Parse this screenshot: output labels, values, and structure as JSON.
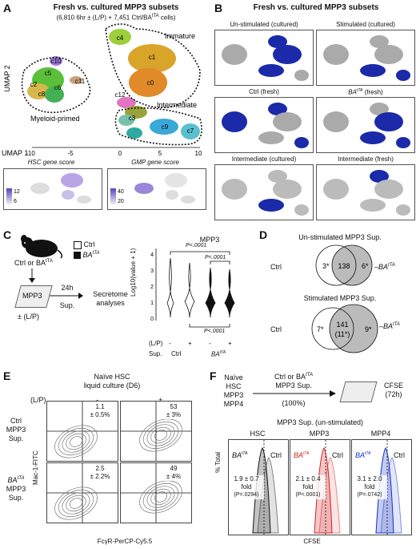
{
  "panelA": {
    "label": "A",
    "title": "Fresh vs. cultured MPP3 subsets",
    "subtitle": "(6,810 6hr ± (L/P) + 7,451 Ctrl/BA",
    "subtitle_sup": "tTA",
    "subtitle_end": " cells)",
    "y_axis": "UMAP 2",
    "x_axis": "UMAP 1",
    "x_ticks": [
      "-10",
      "-5",
      "0",
      "5",
      "10"
    ],
    "regions": {
      "immature": "Immature",
      "intermediate": "Intermediate",
      "myeloid": "Myeloid-primed"
    },
    "clusters": [
      "c0",
      "c1",
      "c2",
      "c3",
      "c4",
      "c5",
      "c6",
      "c7",
      "c8",
      "c9",
      "c10",
      "c11",
      "c12"
    ],
    "hsc_score": {
      "title": "HSC gene score",
      "ticks": [
        "12",
        "6"
      ]
    },
    "gmp_score": {
      "title": "GMP gene score",
      "ticks": [
        "40",
        "20"
      ]
    }
  },
  "panelB": {
    "label": "B",
    "title": "Fresh vs. cultured MPP3 subsets",
    "maps": [
      {
        "title": "Un-stimulated (cultured)",
        "highlight": "#1a2aa8"
      },
      {
        "title": "Stimulated (cultured)",
        "highlight": "#1a2aa8"
      },
      {
        "title": "Ctrl (fresh)",
        "highlight": "#1a2aa8"
      },
      {
        "title": "BA",
        "sup": "tTA",
        "suffix": " (fresh)",
        "highlight": "#1a2aa8"
      },
      {
        "title": "Intermediate (cultured)",
        "highlight": "#1a2aa8"
      },
      {
        "title": "Intermediate (fresh)",
        "highlight": "#1a2aa8"
      }
    ]
  },
  "panelC": {
    "label": "C",
    "mouse_label": "Ctrl or BA",
    "mouse_sup": "tTA",
    "legend_ctrl": "Ctrl",
    "legend_ba": "BA",
    "legend_ba_sup": "tTA",
    "plate_label": "MPP3",
    "lp": "± (L/P)",
    "arrow_label": "24h",
    "arrow_label2": "Sup.",
    "secretome": "Secretome",
    "analyses": "analyses",
    "violin_title": "MPP3",
    "y_axis": "Log10(value + 1)",
    "y_ticks": [
      "0",
      "1",
      "2",
      "3",
      "4"
    ],
    "p1": "P<.0001",
    "p2": "P<.0001",
    "p3": "P<.0001",
    "lp_row": "(L/P)",
    "lp_vals": [
      "-",
      "+",
      "-",
      "+"
    ],
    "sup_row": "Sup.",
    "sup_ctrl": "Ctrl",
    "sup_ba": "BA",
    "sup_ba_sup": "tTA"
  },
  "panelD": {
    "label": "D",
    "title1": "Un-stimulated MPP3 Sup.",
    "ctrl": "Ctrl",
    "ba": "BA",
    "ba_sup": "tTA",
    "v1_left": "3*",
    "v1_mid": "138",
    "v1_right": "6*",
    "title2": "Stimulated MPP3 Sup.",
    "v2_left": "7*",
    "v2_mid": "141",
    "v2_mid2": "(11*)",
    "v2_right": "9*"
  },
  "panelE": {
    "label": "E",
    "title1": "Naïve HSC",
    "title2": "liquid culture (D6)",
    "lp": "(L/P)",
    "minus": "-",
    "plus": "+",
    "row1": [
      "Ctrl",
      "MPP3",
      "Sup."
    ],
    "row2_a": "BA",
    "row2_sup": "tTA",
    "row2_b": "MPP3",
    "row2_c": "Sup.",
    "y_axis": "Mac-1-FITC",
    "x_axis": "FcγR-PerCP-Cy5.5",
    "q": [
      {
        "v": "1.1",
        "e": "± 0.5%"
      },
      {
        "v": "53",
        "e": "± 3%"
      },
      {
        "v": "2.5",
        "e": "± 2.2%"
      },
      {
        "v": "49",
        "e": "± 4%"
      }
    ]
  },
  "panelF": {
    "label": "F",
    "cells": [
      "Naïve",
      "HSC",
      "MPP3",
      "MPP4"
    ],
    "arrow_top": "Ctrl or BA",
    "arrow_top_sup": "tTA",
    "arrow_mid": "MPP3 Sup.",
    "arrow_bot": "(100%)",
    "cfse": "CFSE",
    "cfse_time": "(72h)",
    "subtitle": "MPP3 Sup. (un-stimulated)",
    "y_axis": "% Total",
    "x_axis": "CFSE",
    "plots": [
      {
        "title": "HSC",
        "fold": "1.9 ± 0.7",
        "fold_l": "fold",
        "p": "(P=.0294)",
        "color": "#111111"
      },
      {
        "title": "MPP3",
        "fold": "2.1 ± 0.4",
        "fold_l": "fold",
        "p": "(P<.0001)",
        "color": "#d42020"
      },
      {
        "title": "MPP4",
        "fold": "3.1 ± 2.0",
        "fold_l": "fold",
        "p": "(P=.0742)",
        "color": "#1030c8"
      }
    ],
    "ba": "BA",
    "ba_sup": "tTA",
    "ctrl": "Ctrl"
  }
}
